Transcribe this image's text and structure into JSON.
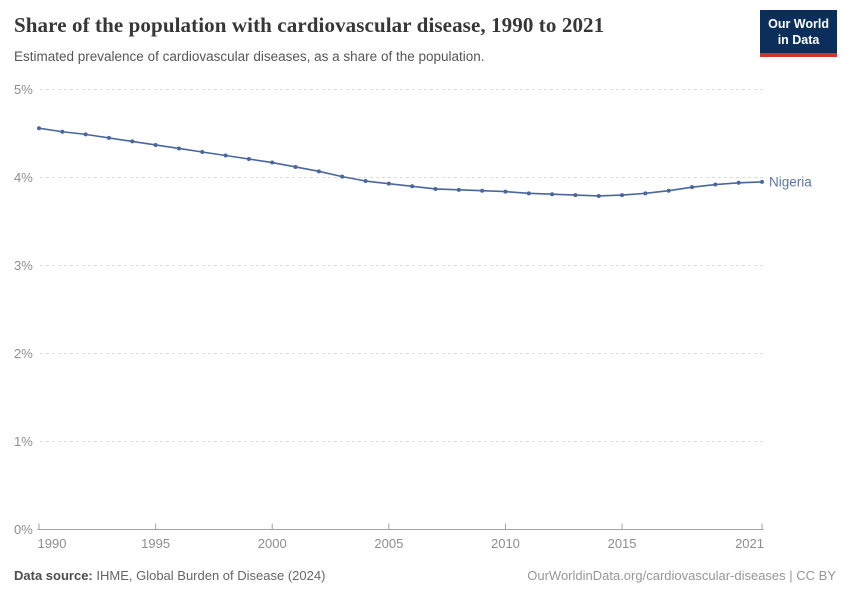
{
  "header": {
    "title": "Share of the population with cardiovascular disease, 1990 to 2021",
    "subtitle": "Estimated prevalence of cardiovascular diseases, as a share of the population.",
    "logo": {
      "line1": "Our World",
      "line2": "in Data"
    }
  },
  "chart_data": {
    "type": "line",
    "title": "Share of the population with cardiovascular disease, 1990 to 2021",
    "xlabel": "",
    "ylabel": "",
    "xlim": [
      1990,
      2021
    ],
    "ylim": [
      0,
      5
    ],
    "grid": "horizontal-dashed",
    "legend_position": "end-of-line-label",
    "x_ticks": [
      1990,
      1995,
      2000,
      2005,
      2010,
      2015,
      2021
    ],
    "y_ticks": [
      {
        "value": 0,
        "label": "0%"
      },
      {
        "value": 1,
        "label": "1%"
      },
      {
        "value": 2,
        "label": "2%"
      },
      {
        "value": 3,
        "label": "3%"
      },
      {
        "value": 4,
        "label": "4%"
      },
      {
        "value": 5,
        "label": "5%"
      }
    ],
    "series": [
      {
        "name": "Nigeria",
        "color": "#4a679b",
        "x": [
          1990,
          1991,
          1992,
          1993,
          1994,
          1995,
          1996,
          1997,
          1998,
          1999,
          2000,
          2001,
          2002,
          2003,
          2004,
          2005,
          2006,
          2007,
          2008,
          2009,
          2010,
          2011,
          2012,
          2013,
          2014,
          2015,
          2016,
          2017,
          2018,
          2019,
          2020,
          2021
        ],
        "values": [
          4.56,
          4.52,
          4.49,
          4.45,
          4.41,
          4.37,
          4.33,
          4.29,
          4.25,
          4.21,
          4.17,
          4.12,
          4.07,
          4.01,
          3.96,
          3.93,
          3.9,
          3.87,
          3.86,
          3.85,
          3.84,
          3.82,
          3.81,
          3.8,
          3.79,
          3.8,
          3.82,
          3.85,
          3.89,
          3.92,
          3.94,
          3.95
        ]
      }
    ]
  },
  "footer": {
    "source_label": "Data source:",
    "source_text": " IHME, Global Burden of Disease (2024)",
    "credit": "OurWorldinData.org/cardiovascular-diseases | CC BY"
  },
  "colors": {
    "line": "#4a679b",
    "series_label": "#5b79a5",
    "grid": "#dbdbdb",
    "axis": "#a3a3a3",
    "tick_text": "#8e8e8e",
    "title": "#373737",
    "logo_bg": "#0c2e5a",
    "logo_red": "#d0342c"
  }
}
